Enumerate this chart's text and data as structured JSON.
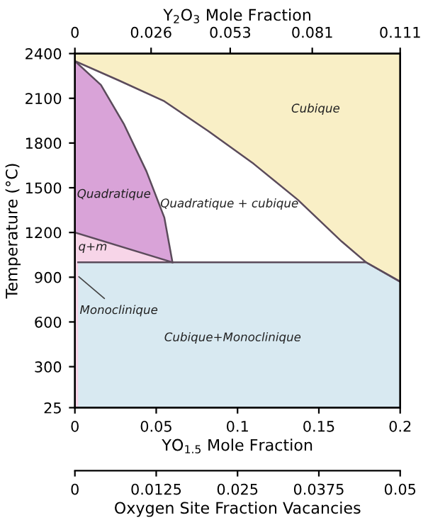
{
  "chart_data": {
    "type": "area",
    "xlabel": "YO$_{1.5}$ Mole Fraction",
    "ylabel": "Temperature (°C)",
    "x2label": "Y$_{2}$O$_{3}$ Mole Fraction",
    "xlim": [
      0,
      0.2
    ],
    "xticks": [
      0,
      0.05,
      0.1,
      0.15,
      0.2
    ],
    "x2lim": [
      0,
      0.111
    ],
    "x2ticks": [
      0,
      0.026,
      0.053,
      0.081,
      0.111
    ],
    "ylim": [
      25,
      2400
    ],
    "yticks": [
      25,
      300,
      600,
      900,
      1200,
      1500,
      1800,
      2100,
      2400
    ],
    "series": [
      {
        "color": "#f9efc6",
        "x": [
          0,
          0.2
        ],
        "values": [
          2400,
          2400
        ]
      },
      {
        "color": "#ffffff",
        "x": [
          0,
          0.027,
          0.055,
          0.082,
          0.11,
          0.137,
          0.164,
          0.179,
          0.2
        ],
        "values": [
          2350,
          2220,
          2080,
          1880,
          1660,
          1420,
          1140,
          1000,
          870
        ]
      },
      {
        "color": "#d9a3d8",
        "x": [
          0,
          0.016,
          0.03,
          0.044,
          0.055,
          0.06
        ],
        "values": [
          2350,
          2190,
          1930,
          1610,
          1300,
          1000
        ]
      },
      {
        "color": "#f7d5e8",
        "x": [
          0,
          0.06
        ],
        "values": [
          1200,
          1000
        ]
      },
      {
        "color": "#d8e9f1",
        "x": [
          0.002,
          0.179,
          0.2
        ],
        "values": [
          1000,
          1000,
          870
        ]
      }
    ],
    "annotations": [
      "Cubique",
      "Quadratique",
      "Quadratique + cubique",
      "q+m",
      "Monoclinique",
      "Cubique+Monoclinique",
      "0",
      "0.0125",
      "0.025",
      "0.0375",
      "0.05",
      "Oxygen Site Fraction Vacancies"
    ]
  }
}
